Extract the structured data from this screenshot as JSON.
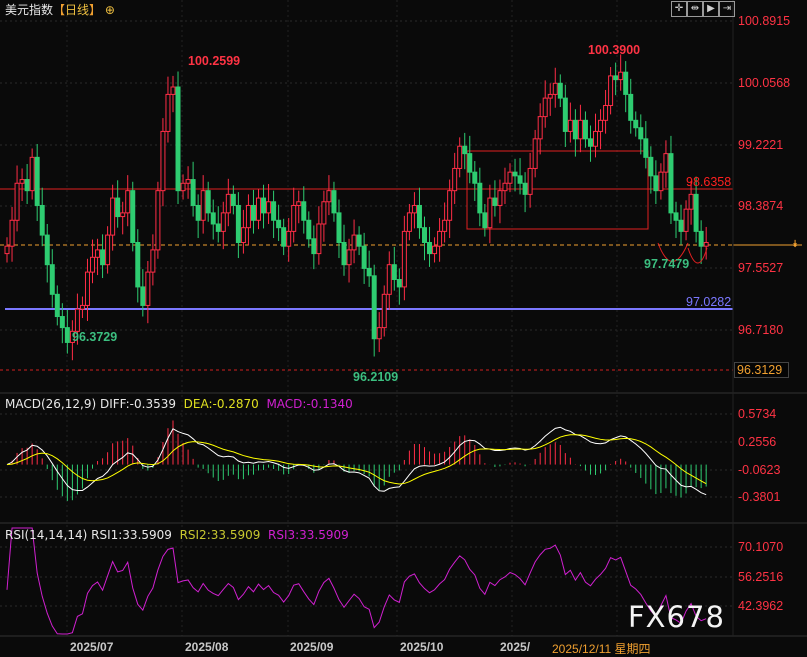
{
  "header": {
    "instrument": "美元指数",
    "bracket_open": "【",
    "period": "日线",
    "bracket_close": "】",
    "add_icon": "circle-plus-icon"
  },
  "toolbar": [
    {
      "icon": "crosshair-icon"
    },
    {
      "icon": "zoom-range-icon"
    },
    {
      "icon": "play-icon"
    },
    {
      "icon": "jump-end-icon"
    }
  ],
  "colors": {
    "up": "#ff2d46",
    "down": "#2ecc71",
    "background": "#0a0a0a",
    "support_line": "#7b78ff",
    "resistance_line": "#e02020",
    "current_price": "#f0a030",
    "diff": "#ffffff",
    "dea": "#ffff00",
    "rsi": "#d020d0"
  },
  "price_axis": [
    "100.8915",
    "100.0568",
    "99.2221",
    "98.3874",
    "97.5527",
    "96.7180"
  ],
  "markers": {
    "high1": "100.2599",
    "high2": "100.3900",
    "low1": "96.3729",
    "low2": "96.2109",
    "resistance": "98.6358",
    "support": "97.0282",
    "recent_low": "97.7479",
    "bottom_price": "96.3129"
  },
  "macd": {
    "label": "MACD(26,12,9)",
    "diff": "DIFF:-0.3539",
    "dea": "DEA:-0.2870",
    "macd": "MACD:-0.1340",
    "axis": [
      "0.5734",
      "0.2556",
      "-0.0623",
      "-0.3801"
    ]
  },
  "rsi": {
    "label": "RSI(14,14,14)",
    "rsi1": "RSI1:33.5909",
    "rsi2": "RSI2:33.5909",
    "rsi3": "RSI3:33.5909",
    "axis": [
      "70.1070",
      "56.2516",
      "42.3962"
    ]
  },
  "x_axis": [
    "2025/07",
    "2025/08",
    "2025/09",
    "2025/10",
    "2025/"
  ],
  "cursor_date": "2025/12/11 星期四",
  "watermark": "FX678",
  "chart_data": {
    "type": "candlestick",
    "title": "美元指数【日线】",
    "ylim": [
      96.21,
      100.89
    ],
    "grid": true,
    "closes": [
      97.85,
      98.2,
      98.7,
      98.75,
      98.6,
      99.05,
      98.4,
      98.0,
      97.6,
      97.2,
      96.9,
      96.75,
      96.55,
      96.7,
      97.0,
      97.05,
      97.5,
      97.7,
      97.8,
      97.6,
      98.0,
      98.5,
      98.25,
      98.3,
      98.6,
      97.9,
      97.3,
      97.05,
      97.5,
      97.8,
      98.6,
      99.4,
      99.9,
      100.0,
      98.6,
      98.7,
      98.75,
      98.4,
      98.2,
      98.6,
      98.3,
      98.15,
      98.05,
      98.3,
      98.55,
      98.4,
      97.9,
      98.1,
      98.4,
      98.2,
      98.5,
      98.3,
      98.45,
      98.2,
      98.1,
      97.85,
      98.05,
      98.4,
      98.45,
      98.2,
      97.95,
      97.75,
      98.15,
      98.45,
      98.6,
      98.3,
      97.9,
      97.6,
      97.8,
      98.0,
      97.85,
      97.55,
      97.45,
      96.6,
      96.75,
      97.2,
      97.6,
      97.4,
      97.3,
      98.05,
      98.3,
      98.4,
      98.1,
      97.9,
      97.75,
      97.85,
      98.05,
      98.2,
      98.6,
      98.9,
      99.2,
      99.1,
      98.85,
      98.7,
      98.3,
      98.1,
      98.5,
      98.4,
      98.6,
      98.7,
      98.85,
      98.8,
      98.7,
      98.55,
      98.9,
      99.3,
      99.6,
      99.85,
      99.9,
      100.05,
      99.85,
      99.4,
      99.55,
      99.3,
      99.55,
      99.3,
      99.2,
      99.4,
      99.55,
      99.75,
      100.15,
      100.1,
      100.2,
      99.9,
      99.55,
      99.45,
      99.3,
      99.05,
      98.8,
      98.6,
      98.85,
      99.1,
      98.3,
      98.2,
      98.05,
      98.35,
      98.55,
      98.05,
      97.85,
      97.9
    ]
  }
}
